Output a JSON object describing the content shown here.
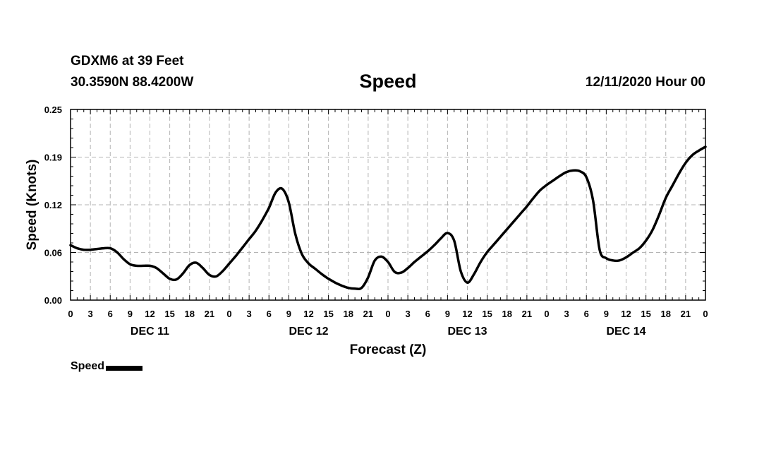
{
  "header": {
    "station": "GDXM6 at 39 Feet",
    "coords": "30.3590N 88.4200W",
    "title": "Speed",
    "issued": "12/11/2020 Hour 00"
  },
  "chart_data": {
    "type": "line",
    "title": "Speed",
    "xlabel": "Forecast (Z)",
    "ylabel": "Speed (Knots)",
    "xlim": [
      0,
      96
    ],
    "ylim": [
      0,
      0.25
    ],
    "yticks": [
      "0.00",
      "0.06",
      "0.12",
      "0.19",
      "0.25"
    ],
    "ytick_values": [
      0,
      0.0625,
      0.125,
      0.1875,
      0.25
    ],
    "xtick_labels": [
      "0",
      "3",
      "6",
      "9",
      "12",
      "15",
      "18",
      "21",
      "0",
      "3",
      "6",
      "9",
      "12",
      "15",
      "18",
      "21",
      "0",
      "3",
      "6",
      "9",
      "12",
      "15",
      "18",
      "21",
      "0",
      "3",
      "6",
      "9",
      "12",
      "15",
      "18",
      "21",
      "0"
    ],
    "day_labels": [
      {
        "label": "DEC 11",
        "at_hour": 12
      },
      {
        "label": "DEC 12",
        "at_hour": 36
      },
      {
        "label": "DEC 13",
        "at_hour": 60
      },
      {
        "label": "DEC 14",
        "at_hour": 84
      }
    ],
    "grid": true,
    "legend": [
      {
        "name": "Speed",
        "color": "#000000"
      }
    ],
    "series": [
      {
        "name": "Speed",
        "color": "#000000",
        "x": [
          0,
          1,
          2,
          3,
          4,
          5,
          6,
          7,
          8,
          9,
          10,
          11,
          12,
          13,
          14,
          15,
          16,
          17,
          18,
          19,
          20,
          21,
          22,
          23,
          24,
          25,
          26,
          27,
          28,
          29,
          30,
          31,
          32,
          33,
          34,
          35,
          36,
          37,
          38,
          39,
          40,
          41,
          42,
          43,
          44,
          45,
          46,
          47,
          48,
          49,
          50,
          51,
          52,
          53,
          54,
          55,
          56,
          57,
          58,
          59,
          60,
          61,
          62,
          63,
          64,
          65,
          66,
          67,
          68,
          69,
          70,
          71,
          72,
          73,
          74,
          75,
          76,
          77,
          78,
          79,
          80,
          81,
          82,
          83,
          84,
          85,
          86,
          87,
          88,
          89,
          90,
          91,
          92,
          93,
          94,
          95,
          96
        ],
        "values": [
          0.072,
          0.068,
          0.066,
          0.066,
          0.067,
          0.068,
          0.068,
          0.063,
          0.054,
          0.047,
          0.045,
          0.045,
          0.045,
          0.042,
          0.035,
          0.028,
          0.027,
          0.035,
          0.046,
          0.049,
          0.042,
          0.033,
          0.031,
          0.038,
          0.048,
          0.058,
          0.069,
          0.08,
          0.091,
          0.105,
          0.121,
          0.141,
          0.146,
          0.128,
          0.086,
          0.06,
          0.048,
          0.041,
          0.034,
          0.028,
          0.023,
          0.019,
          0.016,
          0.015,
          0.016,
          0.03,
          0.052,
          0.057,
          0.05,
          0.037,
          0.036,
          0.042,
          0.05,
          0.057,
          0.064,
          0.072,
          0.081,
          0.088,
          0.078,
          0.038,
          0.023,
          0.034,
          0.05,
          0.063,
          0.073,
          0.083,
          0.093,
          0.103,
          0.113,
          0.123,
          0.134,
          0.144,
          0.151,
          0.157,
          0.163,
          0.168,
          0.17,
          0.169,
          0.161,
          0.131,
          0.066,
          0.055,
          0.052,
          0.052,
          0.056,
          0.062,
          0.068,
          0.078,
          0.092,
          0.112,
          0.134,
          0.15,
          0.166,
          0.18,
          0.19,
          0.196,
          0.201
        ]
      }
    ]
  }
}
